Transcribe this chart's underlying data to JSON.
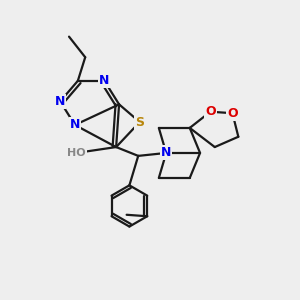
{
  "bg_color": "#eeeeee",
  "bond_color": "#1a1a1a",
  "bond_width": 1.6,
  "atom_colors": {
    "N": "#0000ee",
    "S": "#b8860b",
    "O": "#dd0000",
    "H": "#888888"
  },
  "font_size": 9
}
